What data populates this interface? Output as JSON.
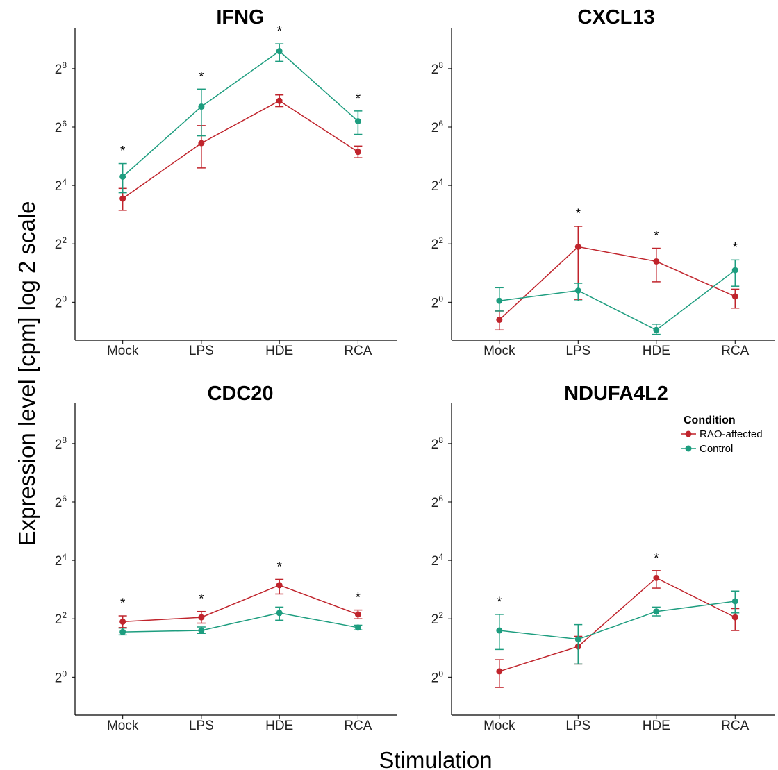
{
  "figure": {
    "xlabel": "Stimulation",
    "ylabel": "Expression level [cpm] log 2 scale"
  },
  "legend": {
    "title": "Condition",
    "entries": [
      {
        "name": "RAO-affected",
        "color": "#c0242c"
      },
      {
        "name": "Control",
        "color": "#1d9d7f"
      }
    ]
  },
  "chart_data": [
    {
      "type": "line",
      "title": "IFNG",
      "yscale": "log2",
      "ytick_base": "2",
      "ytick_exponents": [
        "0",
        "2",
        "4",
        "6",
        "8"
      ],
      "ylim_log2": [
        -1.3,
        9.4
      ],
      "categories": [
        "Mock",
        "LPS",
        "HDE",
        "RCA"
      ],
      "significant": [
        "*",
        "*",
        "*",
        "*"
      ],
      "series": [
        {
          "name": "RAO-affected",
          "color": "#c0242c",
          "log2_values": [
            3.55,
            5.45,
            6.9,
            5.15
          ],
          "log2_lower": [
            3.15,
            4.6,
            6.7,
            4.95
          ],
          "log2_upper": [
            3.9,
            6.05,
            7.1,
            5.35
          ]
        },
        {
          "name": "Control",
          "color": "#1d9d7f",
          "log2_values": [
            4.3,
            6.7,
            8.6,
            6.2
          ],
          "log2_lower": [
            3.75,
            5.7,
            8.25,
            5.75
          ],
          "log2_upper": [
            4.75,
            7.3,
            8.85,
            6.55
          ]
        }
      ]
    },
    {
      "type": "line",
      "title": "CXCL13",
      "yscale": "log2",
      "ytick_base": "2",
      "ytick_exponents": [
        "0",
        "2",
        "4",
        "6",
        "8"
      ],
      "ylim_log2": [
        -1.3,
        9.4
      ],
      "categories": [
        "Mock",
        "LPS",
        "HDE",
        "RCA"
      ],
      "significant": [
        "",
        "*",
        "*",
        "*"
      ],
      "series": [
        {
          "name": "RAO-affected",
          "color": "#c0242c",
          "log2_values": [
            -0.6,
            1.9,
            1.4,
            0.2
          ],
          "log2_lower": [
            -0.95,
            0.1,
            0.7,
            -0.2
          ],
          "log2_upper": [
            -0.3,
            2.6,
            1.85,
            0.45
          ]
        },
        {
          "name": "Control",
          "color": "#1d9d7f",
          "log2_values": [
            0.05,
            0.4,
            -0.95,
            1.1
          ],
          "log2_lower": [
            -0.3,
            0.05,
            -1.1,
            0.55
          ],
          "log2_upper": [
            0.5,
            0.65,
            -0.75,
            1.45
          ]
        }
      ]
    },
    {
      "type": "line",
      "title": "CDC20",
      "yscale": "log2",
      "ytick_base": "2",
      "ytick_exponents": [
        "0",
        "2",
        "4",
        "6",
        "8"
      ],
      "ylim_log2": [
        -1.3,
        9.4
      ],
      "categories": [
        "Mock",
        "LPS",
        "HDE",
        "RCA"
      ],
      "significant": [
        "*",
        "*",
        "*",
        "*"
      ],
      "series": [
        {
          "name": "RAO-affected",
          "color": "#c0242c",
          "log2_values": [
            1.9,
            2.05,
            3.15,
            2.15
          ],
          "log2_lower": [
            1.7,
            1.85,
            2.85,
            2.0
          ],
          "log2_upper": [
            2.1,
            2.25,
            3.35,
            2.3
          ]
        },
        {
          "name": "Control",
          "color": "#1d9d7f",
          "log2_values": [
            1.55,
            1.6,
            2.2,
            1.7
          ],
          "log2_lower": [
            1.45,
            1.5,
            1.95,
            1.62
          ],
          "log2_upper": [
            1.68,
            1.72,
            2.4,
            1.78
          ]
        }
      ]
    },
    {
      "type": "line",
      "title": "NDUFA4L2",
      "yscale": "log2",
      "ytick_base": "2",
      "ytick_exponents": [
        "0",
        "2",
        "4",
        "6",
        "8"
      ],
      "ylim_log2": [
        -1.3,
        9.4
      ],
      "categories": [
        "Mock",
        "LPS",
        "HDE",
        "RCA"
      ],
      "significant": [
        "*",
        "",
        "*",
        ""
      ],
      "series": [
        {
          "name": "RAO-affected",
          "color": "#c0242c",
          "log2_values": [
            0.2,
            1.05,
            3.4,
            2.05
          ],
          "log2_lower": [
            -0.35,
            0.45,
            3.05,
            1.6
          ],
          "log2_upper": [
            0.6,
            1.4,
            3.65,
            2.35
          ]
        },
        {
          "name": "Control",
          "color": "#1d9d7f",
          "log2_values": [
            1.6,
            1.3,
            2.25,
            2.6
          ],
          "log2_lower": [
            0.95,
            0.45,
            2.1,
            2.2
          ],
          "log2_upper": [
            2.15,
            1.8,
            2.4,
            2.95
          ]
        }
      ]
    }
  ]
}
